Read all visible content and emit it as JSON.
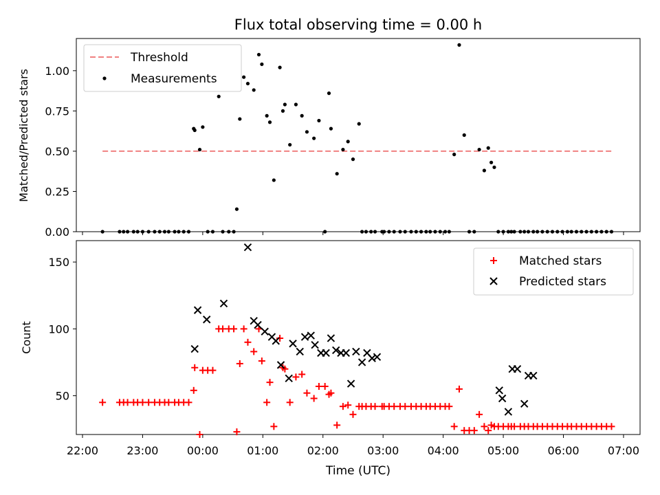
{
  "figure": {
    "title": "Flux total observing time = 0.00 h",
    "xlabel": "Time (UTC)"
  },
  "colors": {
    "threshold": "#f08080",
    "measurements": "#000000",
    "matched": "#ff0000",
    "predicted": "#000000"
  },
  "chart_data": [
    {
      "type": "scatter",
      "title": "Flux total observing time = 0.00 h",
      "xlabel": "",
      "ylabel": "Matched/Predicted stars",
      "xlim": [
        "22:00",
        "07:00"
      ],
      "ylim": [
        0,
        1.2
      ],
      "xticks": [
        "22:00",
        "23:00",
        "00:00",
        "01:00",
        "02:00",
        "03:00",
        "04:00",
        "05:00",
        "06:00",
        "07:00"
      ],
      "yticks": [
        "0.00",
        "0.25",
        "0.50",
        "0.75",
        "1.00"
      ],
      "legend_position": "top-left",
      "threshold": {
        "name": "Threshold",
        "x": [
          "22:20",
          "06:50"
        ],
        "y": 0.5
      },
      "series": [
        {
          "name": "Measurements",
          "x": [
            "22:20",
            "22:37",
            "22:41",
            "22:45",
            "22:51",
            "22:55",
            "23:00",
            "23:06",
            "23:12",
            "23:17",
            "23:22",
            "23:26",
            "23:32",
            "23:36",
            "23:41",
            "23:46",
            "23:51",
            "23:52",
            "23:57",
            "00:00",
            "00:05",
            "00:10",
            "00:16",
            "00:20",
            "00:26",
            "00:31",
            "00:34",
            "00:37",
            "00:41",
            "00:45",
            "00:51",
            "00:56",
            "00:59",
            "01:04",
            "01:07",
            "01:11",
            "01:17",
            "01:20",
            "01:22",
            "01:27",
            "01:33",
            "01:39",
            "01:44",
            "01:51",
            "01:56",
            "02:02",
            "02:06",
            "02:08",
            "02:14",
            "02:20",
            "02:25",
            "02:30",
            "02:36",
            "02:39",
            "02:43",
            "02:48",
            "02:52",
            "02:59",
            "03:01",
            "03:06",
            "03:11",
            "03:17",
            "03:22",
            "03:28",
            "03:33",
            "03:38",
            "03:43",
            "03:47",
            "03:52",
            "03:57",
            "04:02",
            "04:06",
            "04:11",
            "04:16",
            "04:21",
            "04:26",
            "04:31",
            "04:36",
            "04:41",
            "04:45",
            "04:48",
            "04:51",
            "04:55",
            "05:00",
            "05:05",
            "05:08",
            "05:11",
            "05:17",
            "05:21",
            "05:25",
            "05:30",
            "05:34",
            "05:39",
            "05:44",
            "05:49",
            "05:54",
            "05:59",
            "06:04",
            "06:08",
            "06:13",
            "06:18",
            "06:23",
            "06:28",
            "06:33",
            "06:38",
            "06:43",
            "06:48"
          ],
          "y": [
            0,
            0,
            0,
            0,
            0,
            0,
            0,
            0,
            0,
            0,
            0,
            0,
            0,
            0,
            0,
            0,
            0.64,
            0.63,
            0.51,
            0.65,
            0,
            0,
            0.84,
            0,
            0,
            0,
            0.14,
            0.7,
            0.96,
            0.92,
            0.88,
            1.1,
            1.04,
            0.72,
            0.68,
            0.32,
            1.02,
            0.75,
            0.79,
            0.54,
            0.79,
            0.72,
            0.62,
            0.58,
            0.69,
            0,
            0.86,
            0.64,
            0.36,
            0.51,
            0.56,
            0.45,
            0.67,
            0,
            0,
            0,
            0,
            0,
            0,
            0,
            0,
            0,
            0,
            0,
            0,
            0,
            0,
            0,
            0,
            0,
            0,
            0,
            0.48,
            1.16,
            0.6,
            0,
            0,
            0.51,
            0.38,
            0.52,
            0.43,
            0.4,
            0,
            0,
            0,
            0,
            0,
            0,
            0,
            0,
            0,
            0,
            0,
            0,
            0,
            0,
            0,
            0,
            0,
            0,
            0,
            0,
            0,
            0,
            0,
            0,
            0
          ]
        }
      ]
    },
    {
      "type": "scatter",
      "title": "",
      "xlabel": "Time (UTC)",
      "ylabel": "Count",
      "xlim": [
        "22:00",
        "07:00"
      ],
      "ylim": [
        21,
        166
      ],
      "xticks": [
        "22:00",
        "23:00",
        "00:00",
        "01:00",
        "02:00",
        "03:00",
        "04:00",
        "05:00",
        "06:00",
        "07:00"
      ],
      "yticks": [
        "50",
        "100",
        "150"
      ],
      "legend_position": "top-right",
      "series": [
        {
          "name": "Matched stars",
          "marker": "plus",
          "x": [
            "22:20",
            "22:37",
            "22:41",
            "22:45",
            "22:51",
            "22:55",
            "23:00",
            "23:06",
            "23:12",
            "23:17",
            "23:22",
            "23:26",
            "23:32",
            "23:36",
            "23:41",
            "23:46",
            "23:51",
            "23:52",
            "23:57",
            "00:00",
            "00:05",
            "00:10",
            "00:16",
            "00:20",
            "00:26",
            "00:31",
            "00:34",
            "00:37",
            "00:41",
            "00:45",
            "00:51",
            "00:56",
            "00:59",
            "01:04",
            "01:07",
            "01:11",
            "01:17",
            "01:20",
            "01:22",
            "01:27",
            "01:33",
            "01:39",
            "01:44",
            "01:51",
            "01:56",
            "02:02",
            "02:06",
            "02:08",
            "02:14",
            "02:20",
            "02:25",
            "02:30",
            "02:36",
            "02:39",
            "02:43",
            "02:48",
            "02:52",
            "02:59",
            "03:01",
            "03:06",
            "03:11",
            "03:17",
            "03:22",
            "03:28",
            "03:33",
            "03:38",
            "03:43",
            "03:47",
            "03:52",
            "03:57",
            "04:02",
            "04:06",
            "04:11",
            "04:16",
            "04:21",
            "04:26",
            "04:31",
            "04:36",
            "04:41",
            "04:45",
            "04:48",
            "04:51",
            "04:55",
            "05:00",
            "05:05",
            "05:08",
            "05:11",
            "05:17",
            "05:21",
            "05:25",
            "05:30",
            "05:34",
            "05:39",
            "05:44",
            "05:49",
            "05:54",
            "05:59",
            "06:04",
            "06:08",
            "06:13",
            "06:18",
            "06:23",
            "06:28",
            "06:33",
            "06:38",
            "06:43",
            "06:48"
          ],
          "y": [
            45,
            45,
            45,
            45,
            45,
            45,
            45,
            45,
            45,
            45,
            45,
            45,
            45,
            45,
            45,
            45,
            54,
            71,
            21,
            69,
            69,
            69,
            100,
            100,
            100,
            100,
            23,
            74,
            100,
            90,
            83,
            100,
            76,
            45,
            60,
            27,
            93,
            71,
            70,
            45,
            64,
            66,
            52,
            48,
            57,
            57,
            51,
            52,
            28,
            42,
            43,
            36,
            42,
            42,
            42,
            42,
            42,
            42,
            42,
            42,
            42,
            42,
            42,
            42,
            42,
            42,
            42,
            42,
            42,
            42,
            42,
            42,
            27,
            55,
            24,
            24,
            24,
            36,
            27,
            24,
            28,
            27,
            27,
            27,
            27,
            27,
            27,
            27,
            27,
            27,
            27,
            27,
            27,
            27,
            27,
            27,
            27,
            27,
            27,
            27,
            27,
            27,
            27,
            27,
            27,
            27,
            27
          ]
        },
        {
          "name": "Predicted stars",
          "marker": "x",
          "x": [
            "23:52",
            "23:55",
            "00:04",
            "00:21",
            "00:45",
            "00:51",
            "00:55",
            "01:02",
            "01:09",
            "01:13",
            "01:18",
            "01:26",
            "01:30",
            "01:37",
            "01:42",
            "01:48",
            "01:52",
            "01:58",
            "02:03",
            "02:08",
            "02:13",
            "02:18",
            "02:23",
            "02:28",
            "02:33",
            "02:39",
            "02:44",
            "02:49",
            "02:54",
            "04:56",
            "04:59",
            "05:05",
            "05:09",
            "05:14",
            "05:21",
            "05:25",
            "05:30"
          ],
          "y": [
            85,
            114,
            107,
            119,
            161,
            106,
            103,
            98,
            94,
            91,
            73,
            63,
            89,
            83,
            94,
            95,
            88,
            82,
            82,
            93,
            84,
            82,
            82,
            59,
            83,
            75,
            82,
            78,
            79,
            54,
            48,
            38,
            70,
            70,
            44,
            65,
            65
          ]
        }
      ]
    }
  ]
}
